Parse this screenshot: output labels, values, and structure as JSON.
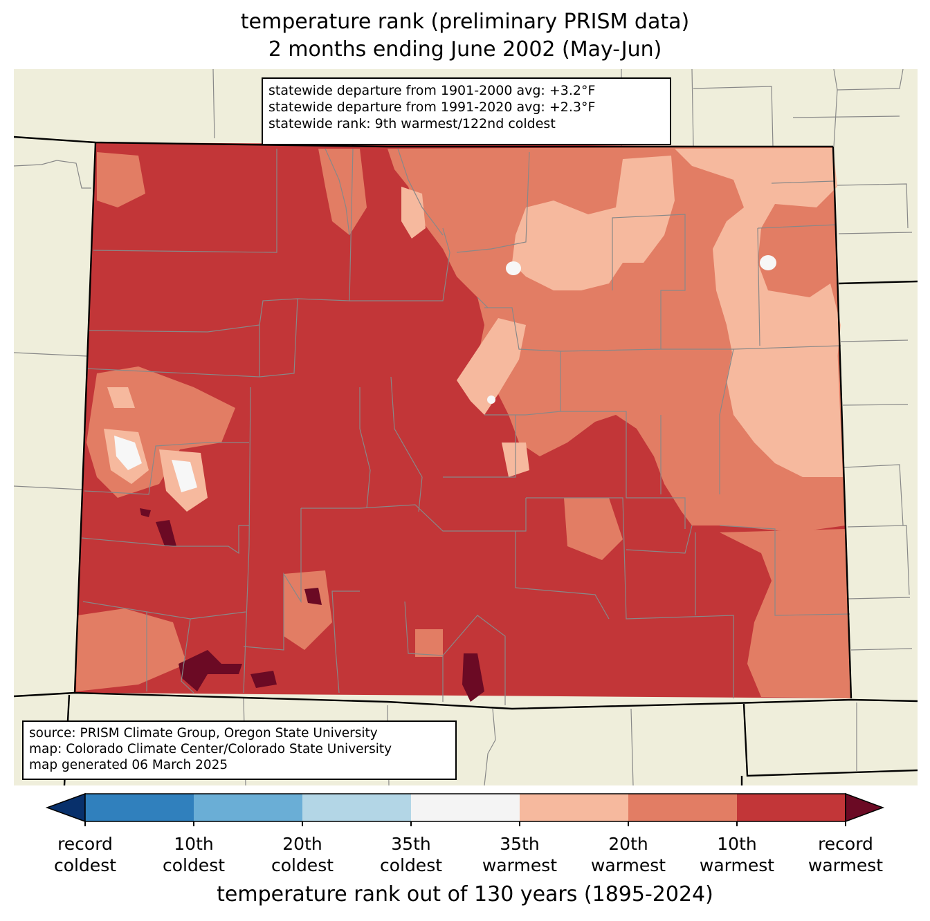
{
  "title": {
    "line1": "temperature rank (preliminary PRISM data)",
    "line2": "2 months ending June 2002 (May-Jun)"
  },
  "stats_box": {
    "line1": "statewide departure from 1901-2000 avg: +3.2°F",
    "line2": "statewide departure from 1991-2020 avg: +2.3°F",
    "line3": "statewide rank: 9th warmest/122nd coldest"
  },
  "source_box": {
    "line1": "source: PRISM Climate Group, Oregon State University",
    "line2": "map: Colorado Climate Center/Colorado State University",
    "line3": "map generated 06 March 2025"
  },
  "colorbar": {
    "title": "temperature rank out of 130 years (1895-2024)",
    "bins": [
      {
        "color": "#2166ac"
      },
      {
        "color": "#3b83c0"
      },
      {
        "color": "#6aaed6"
      },
      {
        "color": "#b3d6e6"
      },
      {
        "color": "#f7f7f7"
      },
      {
        "color": "#f6b99e"
      },
      {
        "color": "#e27d64"
      },
      {
        "color": "#c23638"
      },
      {
        "color": "#6b0a24"
      }
    ],
    "under_color": "#08306b",
    "over_color": "#6b0a24",
    "ticks": [
      {
        "line1": "record",
        "line2": "coldest"
      },
      {
        "line1": "10th",
        "line2": "coldest"
      },
      {
        "line1": "20th",
        "line2": "coldest"
      },
      {
        "line1": "35th",
        "line2": "coldest"
      },
      {
        "line1": "35th",
        "line2": "warmest"
      },
      {
        "line1": "20th",
        "line2": "warmest"
      },
      {
        "line1": "10th",
        "line2": "warmest"
      },
      {
        "line1": "record",
        "line2": "warmest"
      }
    ]
  },
  "map_colors": {
    "background": "#efeedb",
    "rank_10th_warmest": "#c23638",
    "rank_20th_warmest": "#e27d64",
    "rank_35th_warmest": "#f6b99e",
    "near_normal": "#f7f7f7",
    "record_warmest": "#6b0a24",
    "county_lines": "#888888",
    "state_lines": "#000000"
  }
}
